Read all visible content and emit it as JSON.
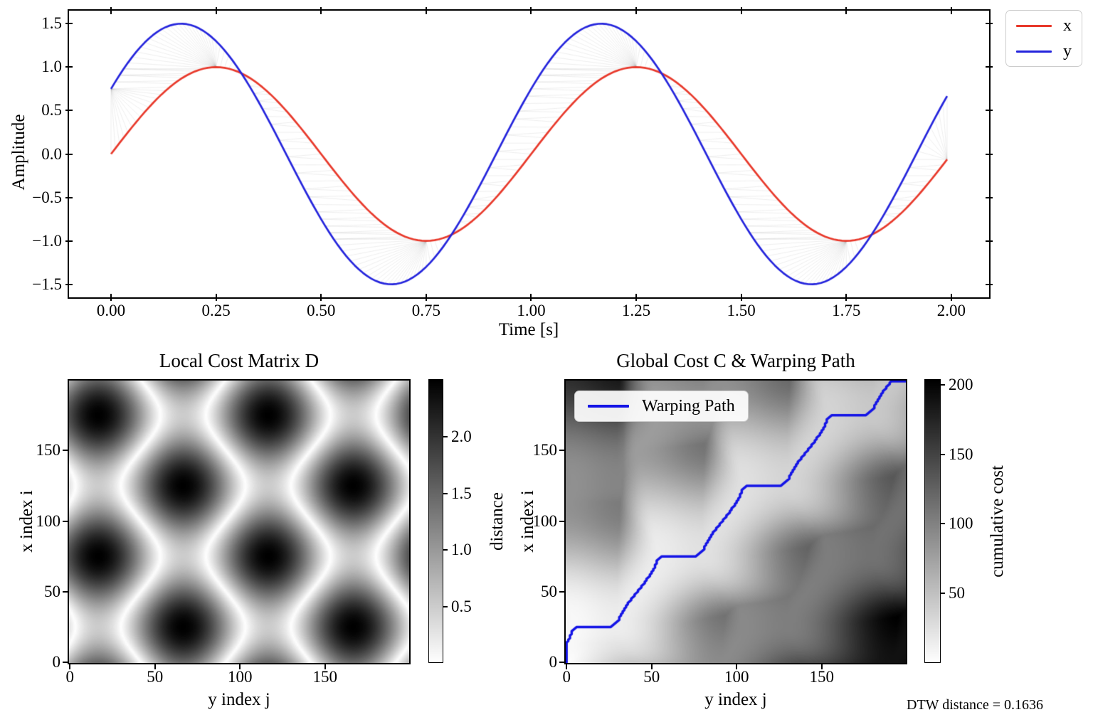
{
  "annotation": {
    "dtw_distance_label": "DTW distance = 0.1636"
  },
  "colors": {
    "series_x": "#e8392b",
    "series_y": "#2424dc",
    "warping_path": "#1414e6",
    "alignment_lines": "rgba(120,120,120,0.16)",
    "axes": "#000000",
    "background": "#ffffff"
  },
  "chart_data": [
    {
      "id": "time-series",
      "type": "line",
      "xlabel": "Time [s]",
      "ylabel": "Amplitude",
      "xlim": [
        -0.1,
        2.09
      ],
      "ylim": [
        -1.65,
        1.65
      ],
      "xticks": {
        "values": [
          0,
          0.25,
          0.5,
          0.75,
          1.0,
          1.25,
          1.5,
          1.75,
          2.0
        ],
        "labels": [
          "0.00",
          "0.25",
          "0.50",
          "0.75",
          "1.00",
          "1.25",
          "1.50",
          "1.75",
          "2.00"
        ]
      },
      "yticks": {
        "values": [
          -1.5,
          -1.0,
          -0.5,
          0.0,
          0.5,
          1.0,
          1.5
        ],
        "labels": [
          "−1.5",
          "−1.0",
          "−0.5",
          "0.0",
          "0.5",
          "1.0",
          "1.5"
        ]
      },
      "signal": {
        "n_points": 200,
        "t_start": 0,
        "dt": 0.01
      },
      "series": [
        {
          "name": "x",
          "color": "#e8392b",
          "amplitude": 1.0,
          "frequency": 1.0,
          "phase_rad": 0.0
        },
        {
          "name": "y",
          "color": "#2424dc",
          "amplitude": 1.5,
          "frequency": 1.0,
          "phase_rad": 0.5236
        }
      ],
      "alignment_lines": {
        "color": "rgba(120,120,120,0.16)",
        "description": "thin gray lines join DTW-aligned sample pairs (x[i] with y[j] along warping path)"
      }
    },
    {
      "id": "local-cost",
      "type": "heatmap",
      "title": "Local Cost Matrix D",
      "xlabel": "y index j",
      "ylabel": "x index i",
      "matrix": "D[i][j] = |x[i] - y[j]|, 200x200, origin lower",
      "colormap": "gray_r",
      "xticks": {
        "values": [
          0,
          50,
          100,
          150
        ],
        "labels": [
          "0",
          "50",
          "100",
          "150"
        ]
      },
      "yticks": {
        "values": [
          0,
          50,
          100,
          150
        ],
        "labels": [
          "0",
          "50",
          "100",
          "150"
        ]
      },
      "colorbar": {
        "label": "distance",
        "vmin": 0,
        "vmax": 2.5,
        "ticks": {
          "values": [
            0.5,
            1.0,
            1.5,
            2.0
          ],
          "labels": [
            "0.5",
            "1.0",
            "1.5",
            "2.0"
          ]
        }
      }
    },
    {
      "id": "global-cost",
      "type": "heatmap",
      "title": "Global Cost C & Warping Path",
      "xlabel": "y index j",
      "ylabel": "x index i",
      "matrix": "C = accumulated DTW cost of D (min over steps down/left/diagonal), 200x200, origin lower",
      "colormap": "gray_r",
      "xticks": {
        "values": [
          0,
          50,
          100,
          150
        ],
        "labels": [
          "0",
          "50",
          "100",
          "150"
        ]
      },
      "yticks": {
        "values": [
          0,
          50,
          100,
          150
        ],
        "labels": [
          "0",
          "50",
          "100",
          "150"
        ]
      },
      "colorbar": {
        "label": "cumulative cost",
        "vmin": 0,
        "vmax": 203,
        "ticks": {
          "values": [
            50,
            100,
            150,
            200
          ],
          "labels": [
            "50",
            "100",
            "150",
            "200"
          ]
        }
      },
      "warping_path": {
        "legend_label": "Warping Path",
        "color": "#1414e6",
        "start": [
          0,
          0
        ],
        "end": [
          199,
          199
        ]
      }
    }
  ]
}
